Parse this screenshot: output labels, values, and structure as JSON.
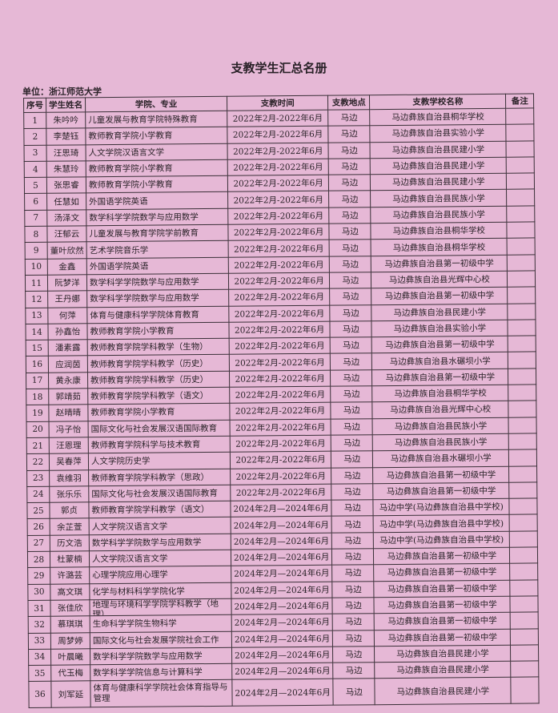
{
  "title": "支教学生汇总名册",
  "unit_label": "单位：浙江师范大学",
  "headers": [
    "序号",
    "学生姓名",
    "学院、专业",
    "支教时间",
    "支教地点",
    "支教学校名称",
    "备注"
  ],
  "rows": [
    [
      "1",
      "朱吟吟",
      "儿童发展与教育学院特殊教育",
      "2022年2月-2022年6月",
      "马边",
      "马边彝族自治县桐华学校",
      ""
    ],
    [
      "2",
      "李楚钰",
      "教师教育学院小学教育",
      "2022年2月-2022年6月",
      "马边",
      "马边彝族自治县实验小学",
      ""
    ],
    [
      "3",
      "汪思琦",
      "人文学院汉语言文学",
      "2022年2月-2022年6月",
      "马边",
      "马边彝族自治县民建小学",
      ""
    ],
    [
      "4",
      "朱慧玲",
      "教师教育学院小学教育",
      "2022年2月-2022年6月",
      "马边",
      "马边彝族自治县民建小学",
      ""
    ],
    [
      "5",
      "张思睿",
      "教师教育学院小学教育",
      "2022年2月-2022年6月",
      "马边",
      "马边彝族自治县民建小学",
      ""
    ],
    [
      "6",
      "任慧如",
      "外国语学院英语",
      "2022年2月-2022年6月",
      "马边",
      "马边彝族自治县民族小学",
      ""
    ],
    [
      "7",
      "汤泽文",
      "数学科学学院数学与应用数学",
      "2022年2月-2022年6月",
      "马边",
      "马边彝族自治县民族小学",
      ""
    ],
    [
      "8",
      "汪郁云",
      "儿童发展与教育学院学前教育",
      "2022年2月-2022年6月",
      "马边",
      "马边彝族自治县桐华学校",
      ""
    ],
    [
      "9",
      "董叶欣然",
      "艺术学院音乐学",
      "2022年2月-2022年6月",
      "马边",
      "马边彝族自治县桐华学校",
      ""
    ],
    [
      "10",
      "金鑫",
      "外国语学院英语",
      "2022年2月-2022年6月",
      "马边",
      "马边彝族自治县第一初级中学",
      ""
    ],
    [
      "11",
      "阮梦洋",
      "数学科学学院数学与应用数学",
      "2022年2月-2022年6月",
      "马边",
      "马边彝族自治县光辉中心校",
      ""
    ],
    [
      "12",
      "王丹娜",
      "数学科学学院数学与应用数学",
      "2022年2月-2022年6月",
      "马边",
      "马边彝族自治县第一初级中学",
      ""
    ],
    [
      "13",
      "何萍",
      "体育与健康科学学院体育教育",
      "2022年2月-2022年6月",
      "马边",
      "马边彝族自治县民建小学",
      ""
    ],
    [
      "14",
      "孙鑫怡",
      "教师教育学院小学教育",
      "2022年2月-2022年6月",
      "马边",
      "马边彝族自治县实验小学",
      ""
    ],
    [
      "15",
      "潘素露",
      "教师教育学院学科教学（生物）",
      "2022年2月-2022年6月",
      "马边",
      "马边彝族自治县第一初级中学",
      ""
    ],
    [
      "16",
      "应润茵",
      "教师教育学院学科教学（历史）",
      "2022年2月-2022年6月",
      "马边",
      "马边彝族自治县水碾坝小学",
      ""
    ],
    [
      "17",
      "黄永康",
      "教师教育学院学科教学（历史）",
      "2022年2月-2022年6月",
      "马边",
      "马边彝族自治县第一初级中学",
      ""
    ],
    [
      "18",
      "郭靖茹",
      "教师教育学院学科教学（语文）",
      "2022年2月-2022年6月",
      "马边",
      "马边彝族自治县桐华学校",
      ""
    ],
    [
      "19",
      "赵晴晴",
      "教师教育学院小学教育",
      "2022年2月-2022年6月",
      "马边",
      "马边彝族自治县光辉中心校",
      ""
    ],
    [
      "20",
      "冯子怡",
      "国际文化与社会发展汉语国际教育",
      "2022年2月-2022年6月",
      "马边",
      "马边彝族自治县民族小学",
      ""
    ],
    [
      "21",
      "汪恩理",
      "教师教育学院科学与技术教育",
      "2022年2月-2022年6月",
      "马边",
      "马边彝族自治县民族小学",
      ""
    ],
    [
      "22",
      "吴春萍",
      "人文学院历史学",
      "2022年2月-2022年6月",
      "马边",
      "马边彝族自治县水碾坝小学",
      ""
    ],
    [
      "23",
      "袁维羽",
      "教师教育学院学科教学（思政）",
      "2022年2月-2022年6月",
      "马边",
      "马边彝族自治县第一初级中学",
      ""
    ],
    [
      "24",
      "张乐乐",
      "国际文化与社会发展汉语国际教育",
      "2022年2月-2022年6月",
      "马边",
      "马边彝族自治县第一初级中学",
      ""
    ],
    [
      "25",
      "郭贞",
      "教师教育学院学科教学（语文）",
      "2024年2月—2024年6月",
      "马边",
      "马边中学(马边彝族自治县中学校)",
      ""
    ],
    [
      "26",
      "余芷萱",
      "人文学院汉语言文学",
      "2024年2月—2024年6月",
      "马边",
      "马边中学(马边彝族自治县中学校)",
      ""
    ],
    [
      "27",
      "历文浩",
      "数学科学学院数学与应用数学",
      "2024年2月—2024年6月",
      "马边",
      "马边中学(马边彝族自治县中学校)",
      ""
    ],
    [
      "28",
      "杜蒙楠",
      "人文学院汉语言文学",
      "2024年2月—2024年6月",
      "马边",
      "马边彝族自治县第一初级中学",
      ""
    ],
    [
      "29",
      "许潞芸",
      "心理学院应用心理学",
      "2024年2月—2024年6月",
      "马边",
      "马边彝族自治县第一初级中学",
      ""
    ],
    [
      "30",
      "高文琪",
      "化学与材料科学学院化学",
      "2024年2月—2024年6月",
      "马边",
      "马边彝族自治县第一初级中学",
      ""
    ],
    [
      "31",
      "张佳欣",
      "地理与环境科学学院学科教学（地理）",
      "2024年2月—2024年6月",
      "马边",
      "马边彝族自治县第一初级中学",
      ""
    ],
    [
      "32",
      "慕琪琪",
      "生命科学学院生物科学",
      "2024年2月—2024年6月",
      "马边",
      "马边彝族自治县第一初级中学",
      ""
    ],
    [
      "33",
      "周梦婷",
      "国际文化与社会发展学院社会工作",
      "2024年2月—2024年6月",
      "马边",
      "马边彝族自治县第一初级中学",
      ""
    ],
    [
      "34",
      "叶晨曦",
      "数学科学学院数学与应用数学",
      "2024年2月—2024年6月",
      "马边",
      "马边彝族自治县民建小学",
      ""
    ],
    [
      "35",
      "代玉梅",
      "数学科学学院信息与计算科学",
      "2024年2月—2024年6月",
      "马边",
      "马边彝族自治县民建小学",
      ""
    ],
    [
      "36",
      "刘军延",
      "体育与健康科学学院社会体育指导与管理",
      "2024年2月—2024年6月",
      "马边",
      "马边彝族自治县民建小学",
      ""
    ]
  ]
}
